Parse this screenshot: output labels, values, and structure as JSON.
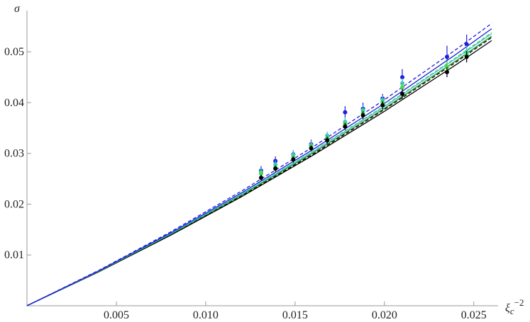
{
  "chart_data": {
    "type": "scatter",
    "y_label": "σ",
    "x_label": {
      "base": "ξ",
      "sub": "c",
      "sup": "−2"
    },
    "xlim": [
      0,
      0.0262
    ],
    "ylim": [
      0,
      0.057
    ],
    "xticks": [
      0.005,
      {
        "value": 0.01,
        "label": "0.010"
      },
      0.015,
      {
        "value": 0.02,
        "label": "0.020"
      },
      0.025
    ],
    "yticks": [
      0.01,
      0.02,
      0.03,
      0.04,
      0.05
    ],
    "curve_x": [
      0,
      0.004,
      0.008,
      0.012,
      0.016,
      0.02,
      0.024,
      0.026
    ],
    "curves": [
      {
        "color": "#000000",
        "dashed": false,
        "values": [
          0,
          0.00665,
          0.0138,
          0.02146,
          0.02962,
          0.03828,
          0.04744,
          0.05221
        ]
      },
      {
        "color": "#000000",
        "dashed": true,
        "values": [
          0,
          0.00667,
          0.01386,
          0.02159,
          0.02985,
          0.03864,
          0.04796,
          0.05282
        ]
      },
      {
        "color": "#1e8c1e",
        "dashed": false,
        "values": [
          0,
          0.00674,
          0.014,
          0.02177,
          0.03007,
          0.03888,
          0.04821,
          0.05307
        ]
      },
      {
        "color": "#44dd44",
        "dashed": true,
        "values": [
          0,
          0.00679,
          0.01412,
          0.022,
          0.03041,
          0.03936,
          0.04886,
          0.0538
        ]
      },
      {
        "color": "#3cc0d8",
        "dashed": false,
        "values": [
          0,
          0.00679,
          0.0141,
          0.02195,
          0.03033,
          0.03924,
          0.04868,
          0.05357
        ]
      },
      {
        "color": "#1f1fd8",
        "dashed": false,
        "values": [
          0,
          0.00684,
          0.01425,
          0.02222,
          0.03075,
          0.03984,
          0.0495,
          0.05454
        ]
      },
      {
        "color": "#1f1fd8",
        "dashed": true,
        "values": [
          0,
          0.00693,
          0.01446,
          0.02257,
          0.03127,
          0.04056,
          0.05044,
          0.0556
        ]
      }
    ],
    "point_x": [
      0.0131,
      0.0139,
      0.0149,
      0.0159,
      0.0168,
      0.0178,
      0.0188,
      0.0199,
      0.021,
      0.0235,
      0.0246
    ],
    "series": [
      {
        "color": "#1f1fd8",
        "values": [
          0.0266,
          0.0285,
          0.0298,
          0.0318,
          0.0328,
          0.0381,
          0.0388,
          0.0408,
          0.045,
          0.049,
          0.0515
        ],
        "errors": [
          0.0009,
          0.0009,
          0.0008,
          0.0009,
          0.0008,
          0.0012,
          0.0012,
          0.0009,
          0.0016,
          0.0022,
          0.0019
        ]
      },
      {
        "color": "#3cc0d8",
        "values": [
          0.0263,
          0.0278,
          0.0297,
          0.0316,
          0.0335,
          0.0362,
          0.0385,
          0.0405,
          0.0438,
          0.047,
          0.05
        ],
        "errors": [
          0.0008,
          0.0008,
          0.0008,
          0.0008,
          0.0008,
          0.0009,
          0.0009,
          0.0009,
          0.001,
          0.0012,
          0.0012
        ]
      },
      {
        "color": "#44dd44",
        "values": [
          0.026,
          0.0272,
          0.0292,
          0.0313,
          0.033,
          0.0358,
          0.038,
          0.04,
          0.043,
          0.047,
          0.0495
        ],
        "errors": [
          0.0008,
          0.0008,
          0.0008,
          0.0008,
          0.0008,
          0.0008,
          0.0009,
          0.0009,
          0.001,
          0.0011,
          0.0012
        ]
      },
      {
        "color": "#000000",
        "values": [
          0.0252,
          0.027,
          0.0288,
          0.031,
          0.0326,
          0.0353,
          0.0375,
          0.0395,
          0.0417,
          0.046,
          0.049
        ],
        "errors": [
          0.0006,
          0.0006,
          0.0006,
          0.0006,
          0.0007,
          0.0007,
          0.0008,
          0.0008,
          0.001,
          0.001,
          0.0011
        ]
      }
    ]
  }
}
